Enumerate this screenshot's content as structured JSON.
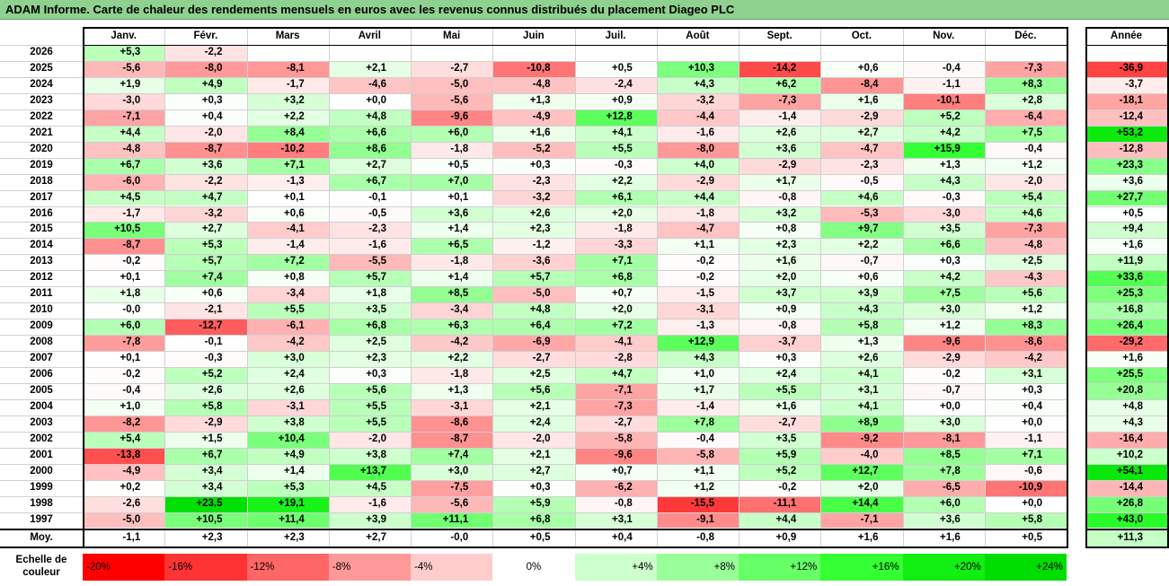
{
  "title": "ADAM Informe. Carte de chaleur des rendements mensuels en euros avec les revenus connus distribués du placement Diageo PLC",
  "chart_data": {
    "type": "heatmap",
    "columns": [
      "Janv.",
      "Févr.",
      "Mars",
      "Avril",
      "Mai",
      "Juin",
      "Juil.",
      "Août",
      "Sept.",
      "Oct.",
      "Nov.",
      "Déc."
    ],
    "year_header": "Année",
    "avg_label": "Moy.",
    "rows": [
      {
        "year": "2026",
        "months": [
          "+5,3",
          "-2,2",
          "",
          "",
          "",
          "",
          "",
          "",
          "",
          "",
          "",
          ""
        ],
        "annual": ""
      },
      {
        "year": "2025",
        "months": [
          "-5,6",
          "-8,0",
          "-8,1",
          "+2,1",
          "-2,7",
          "-10,8",
          "+0,5",
          "+10,3",
          "-14,2",
          "+0,6",
          "-0,4",
          "-7,3"
        ],
        "annual": "-36,9"
      },
      {
        "year": "2024",
        "months": [
          "+1,9",
          "+4,9",
          "-1,7",
          "-4,6",
          "-5,0",
          "-4,8",
          "-2,4",
          "+4,3",
          "+6,2",
          "-8,4",
          "-1,1",
          "+8,3"
        ],
        "annual": "-3,7"
      },
      {
        "year": "2023",
        "months": [
          "-3,0",
          "+0,3",
          "+3,2",
          "+0,0",
          "-5,6",
          "+1,3",
          "+0,9",
          "-3,2",
          "-7,3",
          "+1,6",
          "-10,1",
          "+2,8"
        ],
        "annual": "-18,1"
      },
      {
        "year": "2022",
        "months": [
          "-7,1",
          "+0,4",
          "+2,2",
          "+4,8",
          "-9,6",
          "-4,9",
          "+12,8",
          "-4,4",
          "-1,4",
          "-2,9",
          "+5,2",
          "-6,4"
        ],
        "annual": "-12,4"
      },
      {
        "year": "2021",
        "months": [
          "+4,4",
          "-2,0",
          "+8,4",
          "+6,6",
          "+6,0",
          "+1,6",
          "+4,1",
          "-1,6",
          "+2,6",
          "+2,7",
          "+4,2",
          "+7,5"
        ],
        "annual": "+53,2"
      },
      {
        "year": "2020",
        "months": [
          "-4,8",
          "-8,7",
          "-10,2",
          "+8,6",
          "-1,8",
          "-5,2",
          "+5,5",
          "-8,0",
          "+3,6",
          "-4,7",
          "+15,9",
          "-0,4"
        ],
        "annual": "-12,8"
      },
      {
        "year": "2019",
        "months": [
          "+6,7",
          "+3,6",
          "+7,1",
          "+2,7",
          "+0,5",
          "+0,3",
          "-0,3",
          "+4,0",
          "-2,9",
          "-2,3",
          "+1,3",
          "+1,2"
        ],
        "annual": "+23,3"
      },
      {
        "year": "2018",
        "months": [
          "-6,0",
          "-2,2",
          "-1,3",
          "+6,7",
          "+7,0",
          "-2,3",
          "+2,2",
          "-2,9",
          "+1,7",
          "-0,5",
          "+4,3",
          "-2,0"
        ],
        "annual": "+3,6"
      },
      {
        "year": "2017",
        "months": [
          "+4,5",
          "+4,7",
          "+0,1",
          "-0,1",
          "+0,1",
          "-3,2",
          "+6,1",
          "+4,4",
          "-0,8",
          "+4,6",
          "-0,3",
          "+5,4"
        ],
        "annual": "+27,7"
      },
      {
        "year": "2016",
        "months": [
          "-1,7",
          "-3,2",
          "+0,6",
          "-0,5",
          "+3,6",
          "+2,6",
          "+2,0",
          "-1,8",
          "+3,2",
          "-5,3",
          "-3,0",
          "+4,6"
        ],
        "annual": "+0,5"
      },
      {
        "year": "2015",
        "months": [
          "+10,5",
          "+2,7",
          "-4,1",
          "-2,3",
          "+1,4",
          "+2,3",
          "-1,8",
          "-4,7",
          "+0,8",
          "+9,7",
          "+3,5",
          "-7,3"
        ],
        "annual": "+9,4"
      },
      {
        "year": "2014",
        "months": [
          "-8,7",
          "+5,3",
          "-1,4",
          "-1,6",
          "+6,5",
          "-1,2",
          "-3,3",
          "+1,1",
          "+2,3",
          "+2,2",
          "+6,6",
          "-4,8"
        ],
        "annual": "+1,6"
      },
      {
        "year": "2013",
        "months": [
          "-0,2",
          "+5,7",
          "+7,2",
          "-5,5",
          "-1,8",
          "-3,6",
          "+7,1",
          "-0,2",
          "+1,6",
          "-0,7",
          "+0,3",
          "+2,5"
        ],
        "annual": "+11,9"
      },
      {
        "year": "2012",
        "months": [
          "+0,1",
          "+7,4",
          "+0,8",
          "+5,7",
          "+1,4",
          "+5,7",
          "+6,8",
          "-0,2",
          "+2,0",
          "+0,6",
          "+4,2",
          "-4,3"
        ],
        "annual": "+33,6"
      },
      {
        "year": "2011",
        "months": [
          "+1,8",
          "+0,6",
          "-3,4",
          "+1,8",
          "+8,5",
          "-5,0",
          "+0,7",
          "-1,5",
          "+3,7",
          "+3,9",
          "+7,5",
          "+5,6"
        ],
        "annual": "+25,3"
      },
      {
        "year": "2010",
        "months": [
          "-0,0",
          "-2,1",
          "+5,5",
          "+3,5",
          "-3,4",
          "+4,8",
          "+2,0",
          "-3,1",
          "+0,9",
          "+4,3",
          "+3,0",
          "+1,2"
        ],
        "annual": "+16,8"
      },
      {
        "year": "2009",
        "months": [
          "+6,0",
          "-12,7",
          "-6,1",
          "+6,8",
          "+6,3",
          "+6,4",
          "+7,2",
          "-1,3",
          "-0,8",
          "+5,8",
          "+1,2",
          "+8,3"
        ],
        "annual": "+26,4"
      },
      {
        "year": "2008",
        "months": [
          "-7,8",
          "-0,1",
          "-4,2",
          "+2,5",
          "-4,2",
          "-6,9",
          "-4,1",
          "+12,9",
          "-3,7",
          "+1,3",
          "-9,6",
          "-8,6"
        ],
        "annual": "-29,2"
      },
      {
        "year": "2007",
        "months": [
          "+0,1",
          "-0,3",
          "+3,0",
          "+2,3",
          "+2,2",
          "-2,7",
          "-2,8",
          "+4,3",
          "+0,3",
          "+2,6",
          "-2,9",
          "-4,2"
        ],
        "annual": "+1,6"
      },
      {
        "year": "2006",
        "months": [
          "-0,2",
          "+5,2",
          "+2,4",
          "+0,3",
          "-1,8",
          "+2,5",
          "+4,7",
          "+1,0",
          "+2,4",
          "+4,1",
          "-0,2",
          "+3,1"
        ],
        "annual": "+25,5"
      },
      {
        "year": "2005",
        "months": [
          "-0,4",
          "+2,6",
          "+2,6",
          "+5,6",
          "+1,3",
          "+5,6",
          "-7,1",
          "+1,7",
          "+5,5",
          "+3,1",
          "-0,7",
          "+0,3"
        ],
        "annual": "+20,8"
      },
      {
        "year": "2004",
        "months": [
          "+1,0",
          "+5,8",
          "-3,1",
          "+5,5",
          "-3,1",
          "+2,1",
          "-7,3",
          "-1,4",
          "+1,6",
          "+4,1",
          "+0,0",
          "+0,4"
        ],
        "annual": "+4,8"
      },
      {
        "year": "2003",
        "months": [
          "-8,2",
          "-2,9",
          "+3,8",
          "+5,5",
          "-8,6",
          "+2,4",
          "-2,7",
          "+7,8",
          "-2,7",
          "+8,9",
          "+3,0",
          "+0,0"
        ],
        "annual": "+4,3"
      },
      {
        "year": "2002",
        "months": [
          "+5,4",
          "+1,5",
          "+10,4",
          "-2,0",
          "-8,7",
          "-2,0",
          "-5,8",
          "-0,4",
          "+3,5",
          "-9,2",
          "-8,1",
          "-1,1"
        ],
        "annual": "-16,4"
      },
      {
        "year": "2001",
        "months": [
          "-13,8",
          "+6,7",
          "+4,9",
          "+3,8",
          "+7,4",
          "+2,1",
          "-9,6",
          "-5,8",
          "+5,9",
          "-4,0",
          "+8,5",
          "+7,1"
        ],
        "annual": "+10,2"
      },
      {
        "year": "2000",
        "months": [
          "-4,9",
          "+3,4",
          "+1,4",
          "+13,7",
          "+3,0",
          "+2,7",
          "+0,7",
          "+1,1",
          "+5,2",
          "+12,7",
          "+7,8",
          "-0,6"
        ],
        "annual": "+54,1"
      },
      {
        "year": "1999",
        "months": [
          "+0,2",
          "+3,4",
          "+5,3",
          "+4,5",
          "-7,5",
          "+0,3",
          "-6,2",
          "+1,2",
          "-0,2",
          "+2,0",
          "-6,5",
          "-10,9"
        ],
        "annual": "-14,4"
      },
      {
        "year": "1998",
        "months": [
          "-2,6",
          "+23,5",
          "+19,1",
          "-1,6",
          "-5,6",
          "+5,9",
          "-0,8",
          "-15,5",
          "-11,1",
          "+14,4",
          "+6,0",
          "+0,0"
        ],
        "annual": "+26,8"
      },
      {
        "year": "1997",
        "months": [
          "-5,0",
          "+10,5",
          "+11,4",
          "+3,9",
          "+11,1",
          "+6,8",
          "+3,1",
          "-9,1",
          "+4,4",
          "-7,1",
          "+3,6",
          "+5,8"
        ],
        "annual": "+43,0"
      }
    ],
    "average": {
      "months": [
        "-1,1",
        "+2,3",
        "+2,3",
        "+2,7",
        "-0,0",
        "+0,5",
        "+0,4",
        "-0,8",
        "+0,9",
        "+1,6",
        "+1,6",
        "+0,5"
      ],
      "annual": "+11,3"
    },
    "color_scale": {
      "label": "Echelle de couleur",
      "stops": [
        {
          "label": "-20%",
          "value": -20,
          "color": "#ff0000"
        },
        {
          "label": "-16%",
          "value": -16,
          "color": "#ff3333"
        },
        {
          "label": "-12%",
          "value": -12,
          "color": "#ff6666"
        },
        {
          "label": "-8%",
          "value": -8,
          "color": "#ff9999"
        },
        {
          "label": "-4%",
          "value": -4,
          "color": "#ffcccc"
        },
        {
          "label": "0%",
          "value": 0,
          "color": "#ffffff"
        },
        {
          "label": "+4%",
          "value": 4,
          "color": "#ccffcc"
        },
        {
          "label": "+8%",
          "value": 8,
          "color": "#99ff99"
        },
        {
          "label": "+12%",
          "value": 12,
          "color": "#66ff66"
        },
        {
          "label": "+16%",
          "value": 16,
          "color": "#33ff33"
        },
        {
          "label": "+20%",
          "value": 20,
          "color": "#11ee11"
        },
        {
          "label": "+24%",
          "value": 24,
          "color": "#00dd00"
        }
      ],
      "annual_scale_factor": 2.5
    }
  }
}
